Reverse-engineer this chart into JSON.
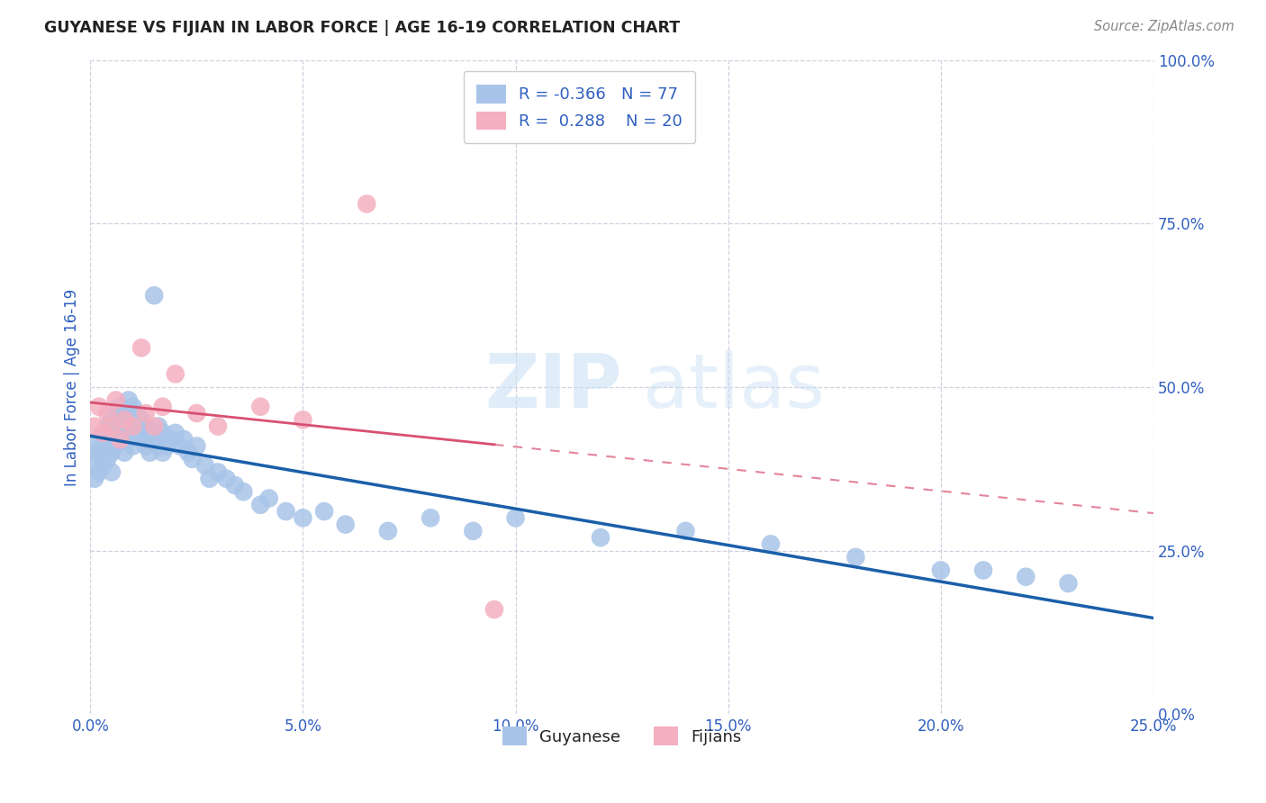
{
  "title": "GUYANESE VS FIJIAN IN LABOR FORCE | AGE 16-19 CORRELATION CHART",
  "source": "Source: ZipAtlas.com",
  "ylabel": "In Labor Force | Age 16-19",
  "watermark_zip": "ZIP",
  "watermark_atlas": "atlas",
  "xlim": [
    0.0,
    0.25
  ],
  "ylim": [
    0.0,
    1.0
  ],
  "xtick_vals": [
    0.0,
    0.05,
    0.1,
    0.15,
    0.2,
    0.25
  ],
  "xticklabels": [
    "0.0%",
    "5.0%",
    "10.0%",
    "15.0%",
    "20.0%",
    "25.0%"
  ],
  "ytick_vals": [
    0.0,
    0.25,
    0.5,
    0.75,
    1.0
  ],
  "yticklabels_right": [
    "0.0%",
    "25.0%",
    "50.0%",
    "75.0%",
    "100.0%"
  ],
  "guyanese_color": "#a8c4e8",
  "fijian_color": "#f4afc0",
  "guyanese_line_color": "#1a5faa",
  "fijian_line_color": "#d85070",
  "R_guyanese": -0.366,
  "N_guyanese": 77,
  "R_fijian": 0.288,
  "N_fijian": 20,
  "legend_label_guyanese": "Guyanese",
  "legend_label_fijian": "Fijians",
  "background_color": "#ffffff",
  "grid_color": "#d0d0e0",
  "title_color": "#222222",
  "axis_label_color": "#3060c0",
  "legend_text_color": "#222222",
  "guyanese_x": [
    0.001,
    0.001,
    0.001,
    0.002,
    0.002,
    0.002,
    0.003,
    0.003,
    0.003,
    0.004,
    0.004,
    0.004,
    0.005,
    0.005,
    0.005,
    0.005,
    0.006,
    0.006,
    0.006,
    0.007,
    0.007,
    0.007,
    0.008,
    0.008,
    0.008,
    0.009,
    0.009,
    0.009,
    0.01,
    0.01,
    0.01,
    0.011,
    0.011,
    0.012,
    0.012,
    0.013,
    0.013,
    0.014,
    0.014,
    0.015,
    0.015,
    0.016,
    0.016,
    0.017,
    0.017,
    0.018,
    0.019,
    0.02,
    0.021,
    0.022,
    0.023,
    0.024,
    0.025,
    0.027,
    0.028,
    0.03,
    0.032,
    0.034,
    0.036,
    0.04,
    0.042,
    0.046,
    0.05,
    0.055,
    0.06,
    0.07,
    0.08,
    0.09,
    0.1,
    0.12,
    0.14,
    0.16,
    0.18,
    0.2,
    0.21,
    0.22,
    0.23
  ],
  "guyanese_y": [
    0.4,
    0.38,
    0.36,
    0.42,
    0.4,
    0.37,
    0.43,
    0.41,
    0.38,
    0.44,
    0.42,
    0.39,
    0.45,
    0.43,
    0.4,
    0.37,
    0.46,
    0.44,
    0.41,
    0.47,
    0.45,
    0.42,
    0.46,
    0.43,
    0.4,
    0.48,
    0.45,
    0.42,
    0.47,
    0.44,
    0.41,
    0.46,
    0.43,
    0.45,
    0.42,
    0.44,
    0.41,
    0.43,
    0.4,
    0.64,
    0.42,
    0.44,
    0.41,
    0.43,
    0.4,
    0.41,
    0.42,
    0.43,
    0.41,
    0.42,
    0.4,
    0.39,
    0.41,
    0.38,
    0.36,
    0.37,
    0.36,
    0.35,
    0.34,
    0.32,
    0.33,
    0.31,
    0.3,
    0.31,
    0.29,
    0.28,
    0.3,
    0.28,
    0.3,
    0.27,
    0.28,
    0.26,
    0.24,
    0.22,
    0.22,
    0.21,
    0.2
  ],
  "fijian_x": [
    0.001,
    0.002,
    0.003,
    0.004,
    0.005,
    0.006,
    0.007,
    0.008,
    0.01,
    0.012,
    0.013,
    0.015,
    0.017,
    0.02,
    0.025,
    0.03,
    0.04,
    0.05,
    0.065,
    0.095
  ],
  "fijian_y": [
    0.44,
    0.47,
    0.43,
    0.46,
    0.44,
    0.48,
    0.42,
    0.45,
    0.44,
    0.56,
    0.46,
    0.44,
    0.47,
    0.52,
    0.46,
    0.44,
    0.47,
    0.45,
    0.78,
    0.16
  ]
}
